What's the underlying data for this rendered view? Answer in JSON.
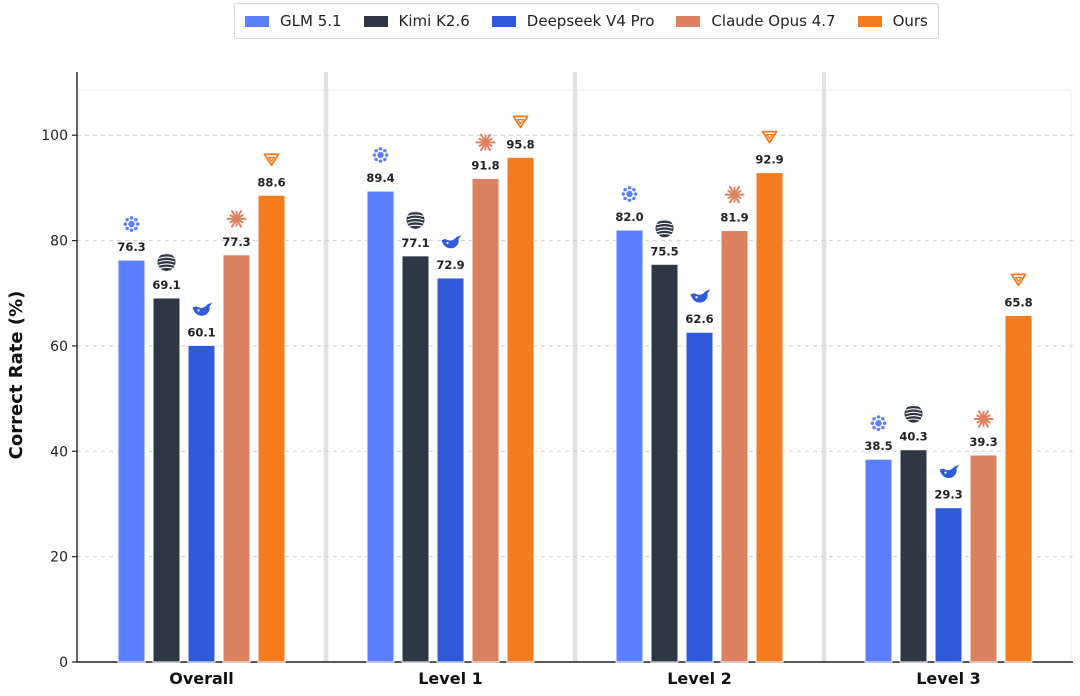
{
  "chart_data": {
    "type": "bar",
    "ylabel": "Correct Rate (%)",
    "ylim": [
      0,
      112
    ],
    "yticks": [
      0,
      20,
      40,
      60,
      80,
      100
    ],
    "grid": "horizontal dashed",
    "legend_position": "top-center",
    "categories": [
      "Overall",
      "Level 1",
      "Level 2",
      "Level 3"
    ],
    "series": [
      {
        "name": "GLM 5.1",
        "color": "#5B7FFF",
        "icon": "glm-logo-icon",
        "values": [
          76.3,
          89.4,
          82.0,
          38.5
        ],
        "labels": [
          "76.3",
          "89.4",
          "82.0",
          "38.5"
        ]
      },
      {
        "name": "Kimi K2.6",
        "color": "#2E3844",
        "icon": "kimi-logo-icon",
        "values": [
          69.1,
          77.1,
          75.5,
          40.3
        ],
        "labels": [
          "69.1",
          "77.1",
          "75.5",
          "40.3"
        ]
      },
      {
        "name": "Deepseek V4 Pro",
        "color": "#2F5BDB",
        "icon": "deepseek-whale-icon",
        "values": [
          60.1,
          72.9,
          62.6,
          29.3
        ],
        "labels": [
          "60.1",
          "72.9",
          "62.6",
          "29.3"
        ]
      },
      {
        "name": "Claude Opus 4.7",
        "color": "#DC8260",
        "icon": "claude-burst-icon",
        "values": [
          77.3,
          91.8,
          81.9,
          39.3
        ],
        "labels": [
          "77.3",
          "91.8",
          "81.9",
          "39.3"
        ]
      },
      {
        "name": "Ours",
        "color": "#F47B20",
        "icon": "ours-triangle-icon",
        "values": [
          88.6,
          95.8,
          92.9,
          65.8
        ],
        "labels": [
          "88.6",
          "95.8",
          "92.9",
          "65.8"
        ]
      }
    ]
  }
}
